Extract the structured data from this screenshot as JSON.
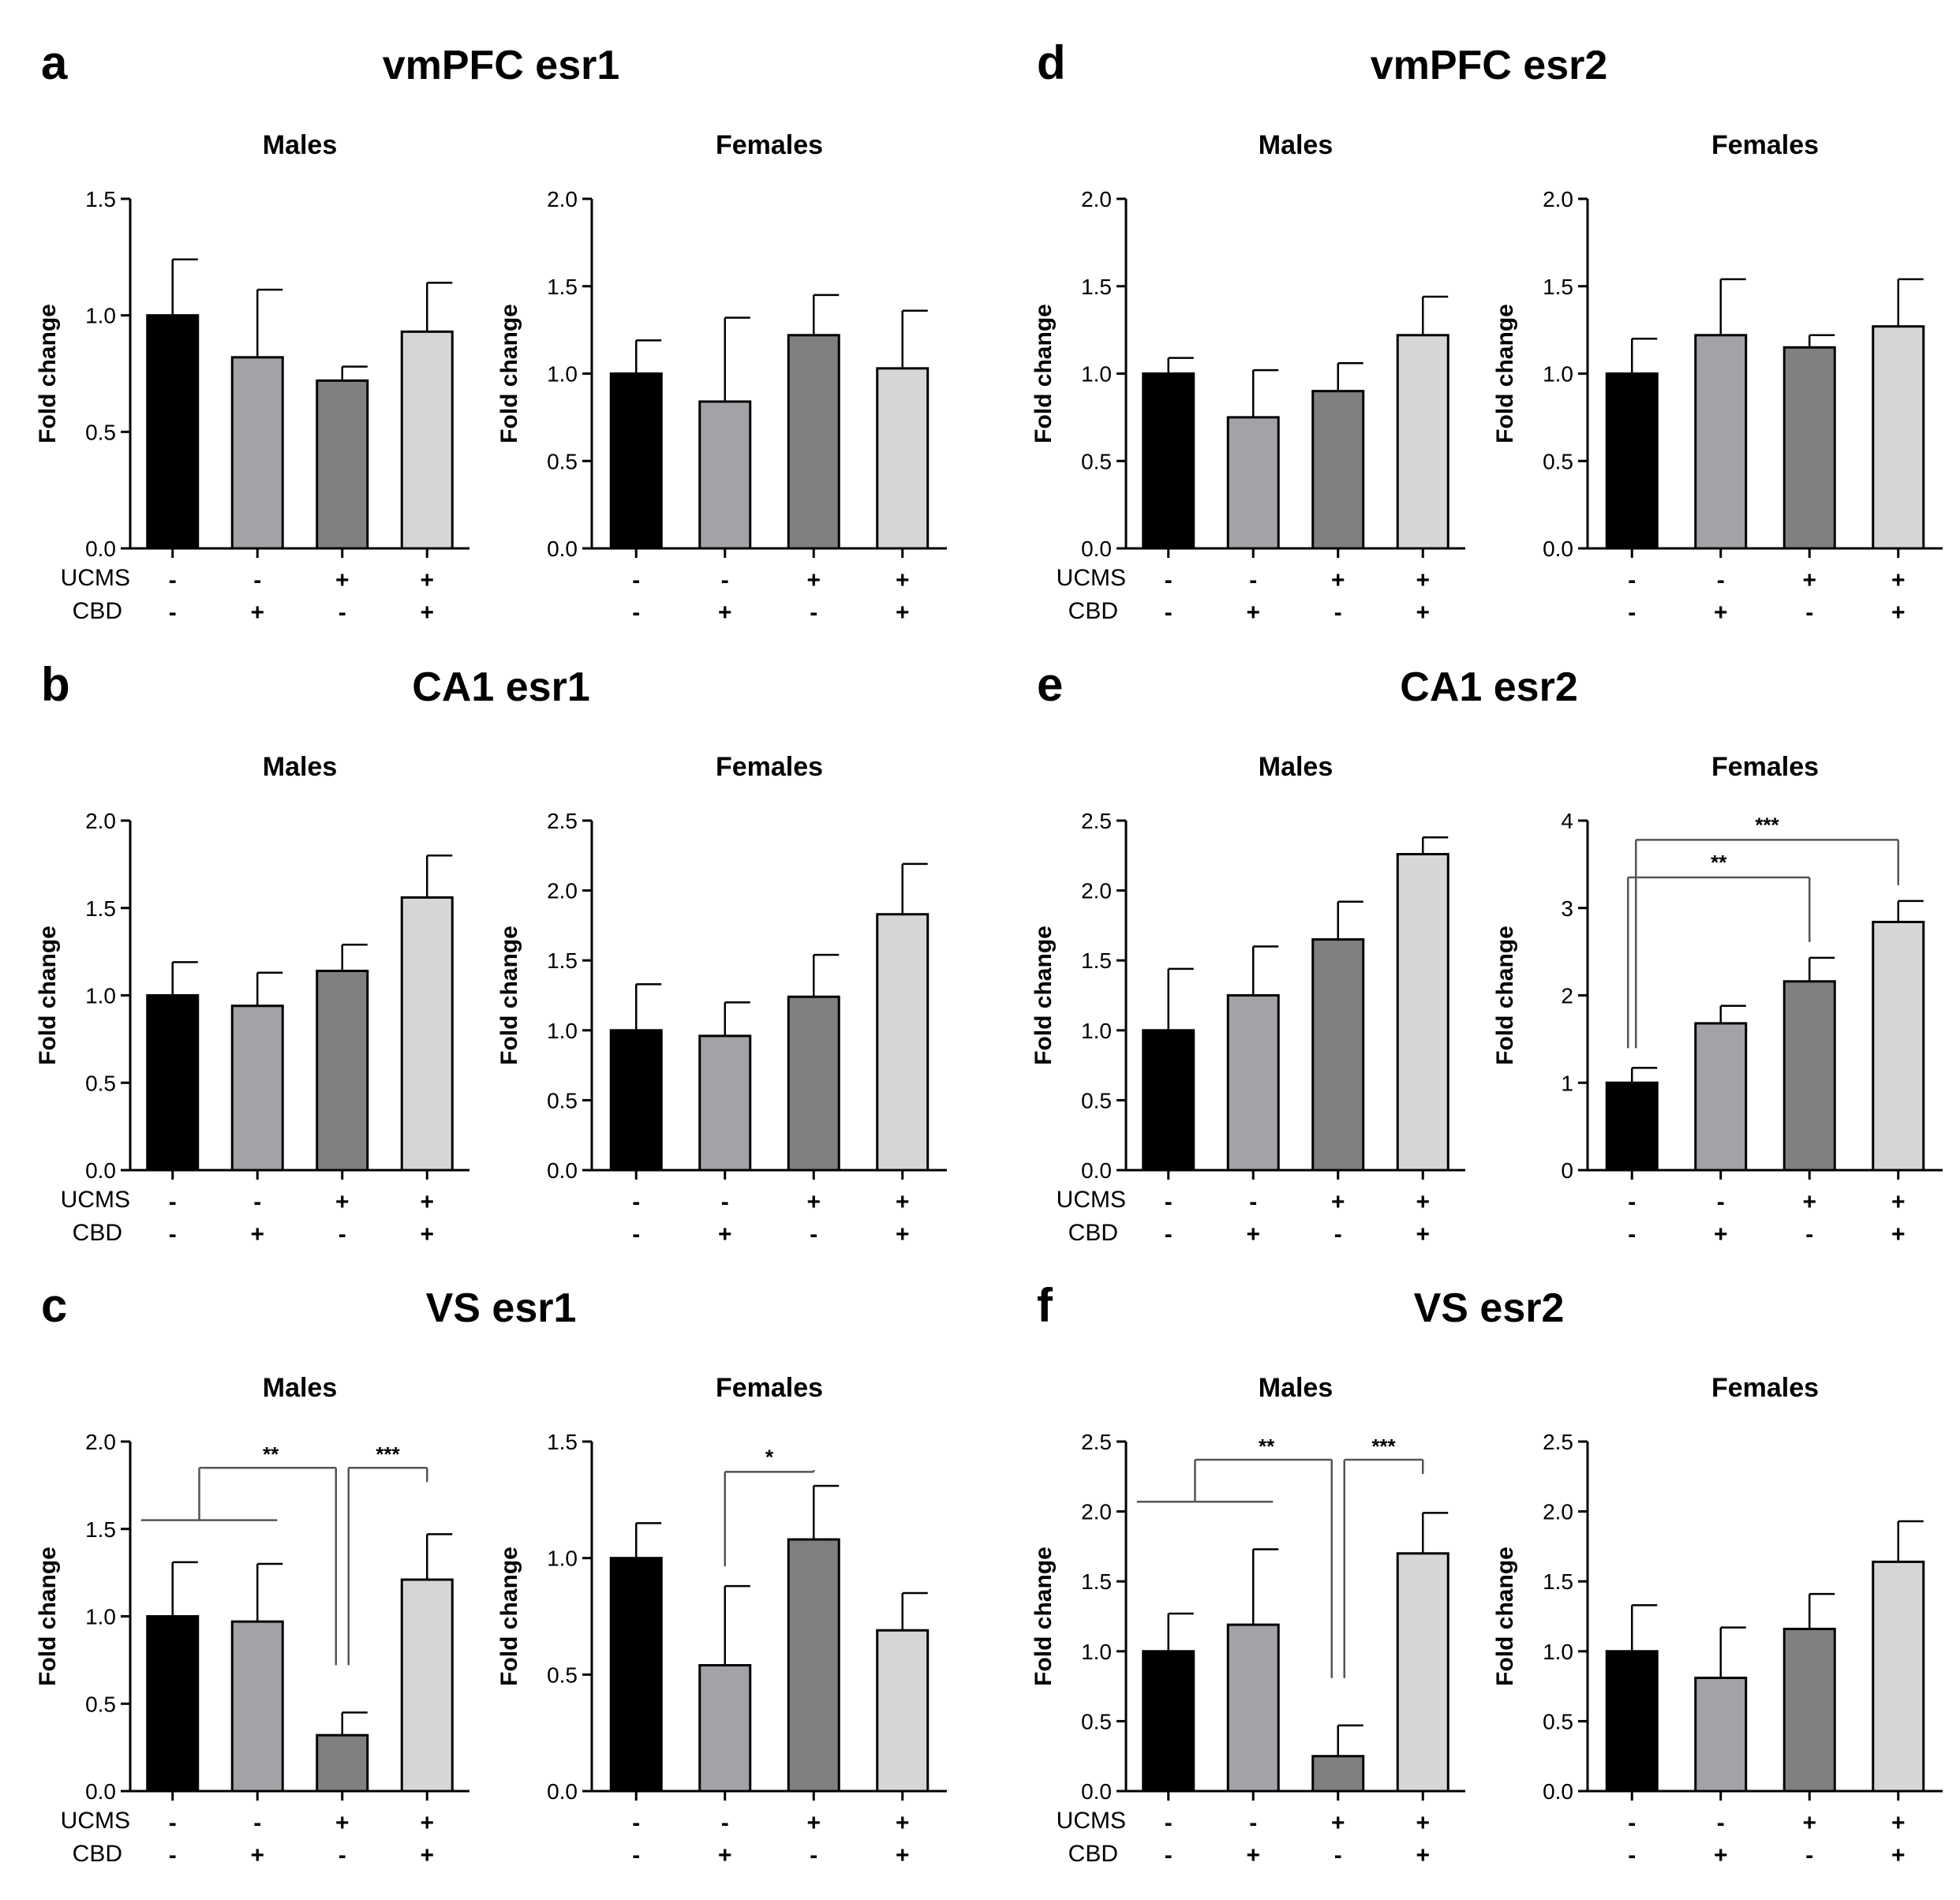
{
  "row_labels": {
    "ucms": "UCMS",
    "cbd": "CBD"
  },
  "groups": [
    {
      "ucms": "-",
      "cbd": "-"
    },
    {
      "ucms": "-",
      "cbd": "+"
    },
    {
      "ucms": "+",
      "cbd": "-"
    },
    {
      "ucms": "+",
      "cbd": "+"
    }
  ],
  "colors": {
    "bars": [
      "#000000",
      "#a3a3a7",
      "#808080",
      "#d6d6d6"
    ],
    "axis": "#000000",
    "sig": "#555555"
  },
  "chart_data": [
    {
      "panel": "a",
      "title": "vmPFC esr1",
      "subplots": [
        {
          "subtitle": "Males",
          "type": "bar",
          "ylabel": "Fold change",
          "ylim": [
            0,
            1.5
          ],
          "yticks": [
            "0.0",
            "0.5",
            "1.0",
            "1.5"
          ],
          "values": [
            1.0,
            0.82,
            0.72,
            0.93
          ],
          "errors": [
            0.24,
            0.29,
            0.06,
            0.21
          ],
          "signif": []
        },
        {
          "subtitle": "Females",
          "type": "bar",
          "ylabel": "Fold change",
          "ylim": [
            0,
            2.0
          ],
          "yticks": [
            "0.0",
            "0.5",
            "1.0",
            "1.5",
            "2.0"
          ],
          "values": [
            1.0,
            0.84,
            1.22,
            1.03
          ],
          "errors": [
            0.19,
            0.48,
            0.23,
            0.33
          ],
          "signif": []
        }
      ]
    },
    {
      "panel": "d",
      "title": "vmPFC esr2",
      "subplots": [
        {
          "subtitle": "Males",
          "type": "bar",
          "ylabel": "Fold change",
          "ylim": [
            0,
            2.0
          ],
          "yticks": [
            "0.0",
            "0.5",
            "1.0",
            "1.5",
            "2.0"
          ],
          "values": [
            1.0,
            0.75,
            0.9,
            1.22
          ],
          "errors": [
            0.09,
            0.27,
            0.16,
            0.22
          ],
          "signif": []
        },
        {
          "subtitle": "Females",
          "type": "bar",
          "ylabel": "Fold change",
          "ylim": [
            0,
            2.0
          ],
          "yticks": [
            "0.0",
            "0.5",
            "1.0",
            "1.5",
            "2.0"
          ],
          "values": [
            1.0,
            1.22,
            1.15,
            1.27
          ],
          "errors": [
            0.2,
            0.32,
            0.07,
            0.27
          ],
          "signif": []
        }
      ]
    },
    {
      "panel": "b",
      "title": "CA1 esr1",
      "subplots": [
        {
          "subtitle": "Males",
          "type": "bar",
          "ylabel": "Fold change",
          "ylim": [
            0,
            2.0
          ],
          "yticks": [
            "0.0",
            "0.5",
            "1.0",
            "1.5",
            "2.0"
          ],
          "values": [
            1.0,
            0.94,
            1.14,
            1.56
          ],
          "errors": [
            0.19,
            0.19,
            0.15,
            0.24
          ],
          "signif": []
        },
        {
          "subtitle": "Females",
          "type": "bar",
          "ylabel": "Fold change",
          "ylim": [
            0,
            2.5
          ],
          "yticks": [
            "0.0",
            "0.5",
            "1.0",
            "1.5",
            "2.0",
            "2.5"
          ],
          "values": [
            1.0,
            0.96,
            1.24,
            1.83
          ],
          "errors": [
            0.33,
            0.24,
            0.3,
            0.36
          ],
          "signif": []
        }
      ]
    },
    {
      "panel": "e",
      "title": "CA1 esr2",
      "subplots": [
        {
          "subtitle": "Males",
          "type": "bar",
          "ylabel": "Fold change",
          "ylim": [
            0,
            2.5
          ],
          "yticks": [
            "0.0",
            "0.5",
            "1.0",
            "1.5",
            "2.0",
            "2.5"
          ],
          "values": [
            1.0,
            1.25,
            1.65,
            2.26
          ],
          "errors": [
            0.44,
            0.35,
            0.27,
            0.12
          ],
          "signif": []
        },
        {
          "subtitle": "Females",
          "type": "bar",
          "ylabel": "Fold change",
          "ylim": [
            0,
            4
          ],
          "yticks": [
            "0",
            "1",
            "2",
            "3",
            "4"
          ],
          "values": [
            1.0,
            1.68,
            2.16,
            2.84
          ],
          "errors": [
            0.17,
            0.2,
            0.27,
            0.24
          ],
          "signif": [
            {
              "label": "**",
              "from": 0,
              "to": 2,
              "level": 3.35
            },
            {
              "label": "***",
              "from": 0,
              "to": 3,
              "level": 3.78
            }
          ]
        }
      ]
    },
    {
      "panel": "c",
      "title": "VS esr1",
      "subplots": [
        {
          "subtitle": "Males",
          "type": "bar",
          "ylabel": "Fold change",
          "ylim": [
            0,
            2.0
          ],
          "yticks": [
            "0.0",
            "0.5",
            "1.0",
            "1.5",
            "2.0"
          ],
          "values": [
            1.0,
            0.97,
            0.32,
            1.21
          ],
          "errors": [
            0.31,
            0.33,
            0.13,
            0.26
          ],
          "signif": [
            {
              "label": "**",
              "from": "01",
              "to": 2,
              "level": 1.85
            },
            {
              "label": "***",
              "from": 2,
              "to": 3,
              "level": 1.85
            }
          ]
        },
        {
          "subtitle": "Females",
          "type": "bar",
          "ylabel": "Fold change",
          "ylim": [
            0,
            1.5
          ],
          "yticks": [
            "0.0",
            "0.5",
            "1.0",
            "1.5"
          ],
          "values": [
            1.0,
            0.54,
            1.08,
            0.69
          ],
          "errors": [
            0.15,
            0.34,
            0.23,
            0.16
          ],
          "signif": [
            {
              "label": "*",
              "from": 1,
              "to": 2,
              "level": 1.37
            }
          ]
        }
      ]
    },
    {
      "panel": "f",
      "title": "VS esr2",
      "subplots": [
        {
          "subtitle": "Males",
          "type": "bar",
          "ylabel": "Fold change",
          "ylim": [
            0,
            2.5
          ],
          "yticks": [
            "0.0",
            "0.5",
            "1.0",
            "1.5",
            "2.0",
            "2.5"
          ],
          "values": [
            1.0,
            1.19,
            0.25,
            1.7
          ],
          "errors": [
            0.27,
            0.54,
            0.22,
            0.29
          ],
          "signif": [
            {
              "label": "**",
              "from": "01",
              "to": 2,
              "level": 2.37
            },
            {
              "label": "***",
              "from": 2,
              "to": 3,
              "level": 2.37
            }
          ]
        },
        {
          "subtitle": "Females",
          "type": "bar",
          "ylabel": "Fold change",
          "ylim": [
            0,
            2.5
          ],
          "yticks": [
            "0.0",
            "0.5",
            "1.0",
            "1.5",
            "2.0",
            "2.5"
          ],
          "values": [
            1.0,
            0.81,
            1.16,
            1.64
          ],
          "errors": [
            0.33,
            0.36,
            0.25,
            0.29
          ],
          "signif": []
        }
      ]
    }
  ]
}
